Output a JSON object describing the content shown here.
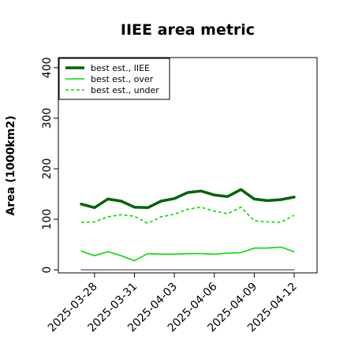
{
  "chart_data": {
    "type": "line",
    "title": "IIEE area metric",
    "xlabel": "",
    "ylabel": "Area (1000km2)",
    "ylim": [
      -6,
      420
    ],
    "yticks": [
      0,
      100,
      200,
      300,
      400
    ],
    "x": [
      "2025-03-27",
      "2025-03-28",
      "2025-03-29",
      "2025-03-30",
      "2025-03-31",
      "2025-04-01",
      "2025-04-02",
      "2025-04-03",
      "2025-04-04",
      "2025-04-05",
      "2025-04-06",
      "2025-04-07",
      "2025-04-08",
      "2025-04-09",
      "2025-04-10",
      "2025-04-11",
      "2025-04-12"
    ],
    "xticks": [
      "2025-03-28",
      "2025-03-31",
      "2025-04-03",
      "2025-04-06",
      "2025-04-09",
      "2025-04-12"
    ],
    "legend": {
      "position": "top-left",
      "entries": [
        "best est., IIEE",
        "best est., over",
        "best est., under"
      ]
    },
    "series": [
      {
        "name": "best est., IIEE",
        "color": "#006400",
        "style": "solid-thick",
        "values": [
          130,
          123,
          140,
          136,
          124,
          123,
          136,
          141,
          153,
          156,
          148,
          145,
          159,
          140,
          137,
          139,
          144
        ]
      },
      {
        "name": "best est., over",
        "color": "#00dd00",
        "style": "solid",
        "values": [
          37,
          28,
          36,
          28,
          18,
          32,
          31,
          31,
          32,
          32,
          31,
          33,
          34,
          43,
          43,
          45,
          36
        ]
      },
      {
        "name": "best est., under",
        "color": "#00dd00",
        "style": "dashed",
        "values": [
          94,
          95,
          105,
          109,
          106,
          92,
          105,
          110,
          120,
          124,
          116,
          111,
          124,
          97,
          95,
          94,
          108
        ]
      },
      {
        "name": "",
        "color": "#666666",
        "style": "baseline",
        "values": [
          0,
          0,
          0,
          0,
          0,
          0,
          0,
          0,
          0,
          0,
          0,
          0,
          0,
          0,
          0,
          0,
          0
        ]
      }
    ]
  }
}
